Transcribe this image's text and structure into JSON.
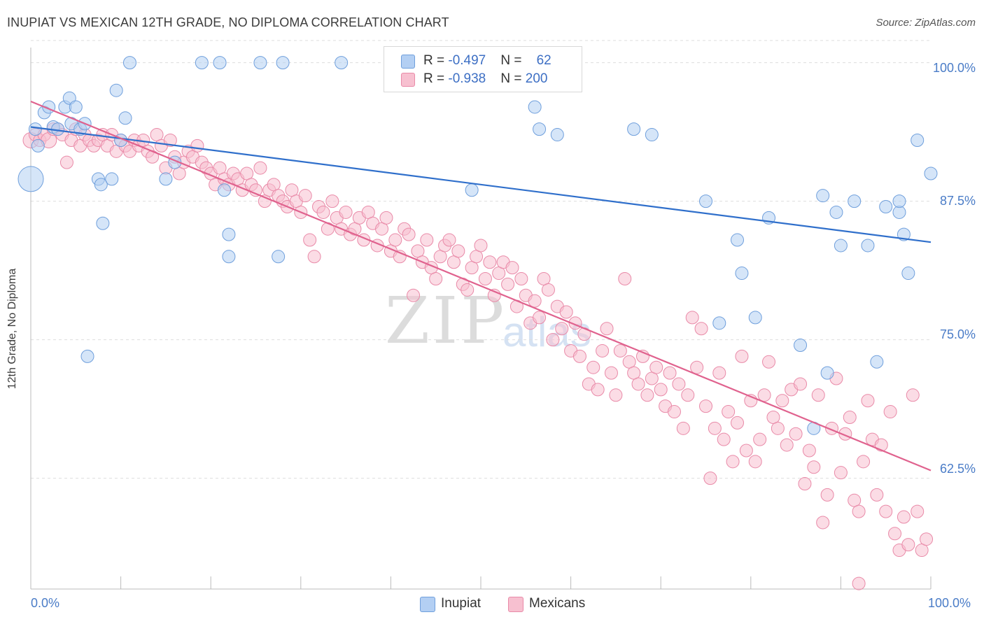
{
  "title": "INUPIAT VS MEXICAN 12TH GRADE, NO DIPLOMA CORRELATION CHART",
  "source": "Source: ZipAtlas.com",
  "watermark": {
    "zip": "ZIP",
    "atlas": "atlas"
  },
  "colors": {
    "inupiat_fill": "#b3cff3",
    "inupiat_stroke": "#6f9fdc",
    "inupiat_line": "#2f6fcb",
    "mexicans_fill": "#f7c0d0",
    "mexicans_stroke": "#e98aa8",
    "mexicans_line": "#e0628e",
    "tick_label": "#4a7cc7",
    "grid": "#dddddd"
  },
  "legend": {
    "rows": [
      {
        "r_label": "R = ",
        "r_value": "-0.497",
        "n_label": "N = ",
        "n_value": " 62"
      },
      {
        "r_label": "R = ",
        "r_value": "-0.938",
        "n_label": "N = ",
        "n_value": "200"
      }
    ]
  },
  "chart_data": {
    "type": "scatter",
    "title": "INUPIAT VS MEXICAN 12TH GRADE, NO DIPLOMA CORRELATION CHART",
    "xlabel": "",
    "ylabel": "12th Grade, No Diploma",
    "xlim": [
      0,
      100
    ],
    "ylim": [
      52.5,
      102.5
    ],
    "x_tick_labels": [
      "0.0%",
      "100.0%"
    ],
    "y_ticks": [
      62.5,
      75.0,
      87.5,
      100.0
    ],
    "y_tick_labels": [
      "62.5%",
      "75.0%",
      "87.5%",
      "100.0%"
    ],
    "grid": true,
    "legend_position": "top-center",
    "series": [
      {
        "name": "Inupiat",
        "points": [
          [
            0,
            89.5
          ],
          [
            0.5,
            94
          ],
          [
            0.8,
            92.5
          ],
          [
            1.5,
            95.5
          ],
          [
            2,
            96
          ],
          [
            2.5,
            94.2
          ],
          [
            3,
            94
          ],
          [
            3.8,
            96
          ],
          [
            4.3,
            96.8
          ],
          [
            4.5,
            94.5
          ],
          [
            5,
            96
          ],
          [
            5.5,
            94
          ],
          [
            6,
            94.5
          ],
          [
            6.3,
            73.5
          ],
          [
            7.5,
            89.5
          ],
          [
            7.8,
            89
          ],
          [
            8,
            85.5
          ],
          [
            9,
            89.5
          ],
          [
            9.5,
            97.5
          ],
          [
            10,
            93
          ],
          [
            10.5,
            95
          ],
          [
            11,
            100
          ],
          [
            15,
            89.5
          ],
          [
            16,
            91
          ],
          [
            19,
            100
          ],
          [
            21,
            100
          ],
          [
            21.5,
            88.5
          ],
          [
            22,
            84.5
          ],
          [
            22,
            82.5
          ],
          [
            25.5,
            100
          ],
          [
            27.5,
            82.5
          ],
          [
            28,
            100
          ],
          [
            34.5,
            100
          ],
          [
            46.5,
            100
          ],
          [
            49,
            88.5
          ],
          [
            56,
            96
          ],
          [
            56.5,
            94
          ],
          [
            58.5,
            93.5
          ],
          [
            67,
            94
          ],
          [
            69,
            93.5
          ],
          [
            75,
            87.5
          ],
          [
            76.5,
            76.5
          ],
          [
            78.5,
            84
          ],
          [
            79,
            81
          ],
          [
            80.5,
            77
          ],
          [
            82,
            86
          ],
          [
            85.5,
            74.5
          ],
          [
            87,
            67
          ],
          [
            88,
            88
          ],
          [
            88.5,
            72
          ],
          [
            89.5,
            86.5
          ],
          [
            90,
            83.5
          ],
          [
            91.5,
            87.5
          ],
          [
            93,
            83.5
          ],
          [
            94,
            73
          ],
          [
            95,
            87
          ],
          [
            96.5,
            86.5
          ],
          [
            96.5,
            87.5
          ],
          [
            97,
            84.5
          ],
          [
            97.5,
            81
          ],
          [
            98.5,
            93
          ],
          [
            100,
            90
          ]
        ],
        "trend": {
          "x": [
            0,
            100
          ],
          "y": [
            94.2,
            83.8
          ]
        }
      },
      {
        "name": "Mexicans",
        "points": [
          [
            0,
            93
          ],
          [
            0.5,
            93.5
          ],
          [
            1,
            93
          ],
          [
            1.5,
            93.5
          ],
          [
            2,
            93
          ],
          [
            2.5,
            94
          ],
          [
            3,
            94
          ],
          [
            3.5,
            93.5
          ],
          [
            4,
            91
          ],
          [
            4.5,
            93
          ],
          [
            5,
            94
          ],
          [
            5.5,
            92.5
          ],
          [
            6,
            93.5
          ],
          [
            6.5,
            93
          ],
          [
            7,
            92.5
          ],
          [
            7.5,
            93
          ],
          [
            8,
            93.5
          ],
          [
            8.5,
            92.5
          ],
          [
            9,
            93.5
          ],
          [
            9.5,
            92
          ],
          [
            10,
            93
          ],
          [
            10.5,
            92.5
          ],
          [
            11,
            92
          ],
          [
            11.5,
            93
          ],
          [
            12,
            92.5
          ],
          [
            12.5,
            93
          ],
          [
            13,
            92
          ],
          [
            13.5,
            91.5
          ],
          [
            14,
            93.5
          ],
          [
            14.5,
            92.5
          ],
          [
            15,
            90.5
          ],
          [
            15.5,
            93
          ],
          [
            16,
            91.5
          ],
          [
            16.5,
            90
          ],
          [
            17,
            91
          ],
          [
            17.5,
            92
          ],
          [
            18,
            91.5
          ],
          [
            18.5,
            92.5
          ],
          [
            19,
            91
          ],
          [
            19.5,
            90.5
          ],
          [
            20,
            90
          ],
          [
            20.5,
            89
          ],
          [
            21,
            90.5
          ],
          [
            21.5,
            89.5
          ],
          [
            22,
            89
          ],
          [
            22.5,
            90
          ],
          [
            23,
            89.5
          ],
          [
            23.5,
            88.5
          ],
          [
            24,
            90
          ],
          [
            24.5,
            89
          ],
          [
            25,
            88.5
          ],
          [
            25.5,
            90.5
          ],
          [
            26,
            87.5
          ],
          [
            26.5,
            88.5
          ],
          [
            27,
            89
          ],
          [
            27.5,
            88
          ],
          [
            28,
            87.5
          ],
          [
            28.5,
            87
          ],
          [
            29,
            88.5
          ],
          [
            29.5,
            87.5
          ],
          [
            30,
            86.5
          ],
          [
            30.5,
            88
          ],
          [
            31,
            84
          ],
          [
            31.5,
            82.5
          ],
          [
            32,
            87
          ],
          [
            32.5,
            86.5
          ],
          [
            33,
            85
          ],
          [
            33.5,
            87.5
          ],
          [
            34,
            86
          ],
          [
            34.5,
            85
          ],
          [
            35,
            86.5
          ],
          [
            35.5,
            84.5
          ],
          [
            36,
            85
          ],
          [
            36.5,
            86
          ],
          [
            37,
            84
          ],
          [
            37.5,
            86.5
          ],
          [
            38,
            85.5
          ],
          [
            38.5,
            83.5
          ],
          [
            39,
            85
          ],
          [
            39.5,
            86
          ],
          [
            40,
            83
          ],
          [
            40.5,
            84
          ],
          [
            41,
            82.5
          ],
          [
            41.5,
            85
          ],
          [
            42,
            84.5
          ],
          [
            42.5,
            79
          ],
          [
            43,
            83
          ],
          [
            43.5,
            82
          ],
          [
            44,
            84
          ],
          [
            44.5,
            81.5
          ],
          [
            45,
            80.5
          ],
          [
            45.5,
            82.5
          ],
          [
            46,
            83.5
          ],
          [
            46.5,
            84
          ],
          [
            47,
            82
          ],
          [
            47.5,
            83
          ],
          [
            48,
            80
          ],
          [
            48.5,
            79.5
          ],
          [
            49,
            81.5
          ],
          [
            49.5,
            82.5
          ],
          [
            50,
            83.5
          ],
          [
            50.5,
            80.5
          ],
          [
            51,
            82
          ],
          [
            51.5,
            79
          ],
          [
            52,
            81
          ],
          [
            52.5,
            82
          ],
          [
            53,
            80
          ],
          [
            53.5,
            81.5
          ],
          [
            54,
            78
          ],
          [
            54.5,
            80.5
          ],
          [
            55,
            79
          ],
          [
            55.5,
            76.5
          ],
          [
            56,
            78.5
          ],
          [
            56.5,
            77
          ],
          [
            57,
            80.5
          ],
          [
            57.5,
            79.5
          ],
          [
            58,
            75
          ],
          [
            58.5,
            78
          ],
          [
            59,
            76
          ],
          [
            59.5,
            77.5
          ],
          [
            60,
            74
          ],
          [
            60.5,
            76.5
          ],
          [
            61,
            73.5
          ],
          [
            61.5,
            75.5
          ],
          [
            62,
            71
          ],
          [
            62.5,
            72.5
          ],
          [
            63,
            70.5
          ],
          [
            63.5,
            74
          ],
          [
            64,
            76
          ],
          [
            64.5,
            72
          ],
          [
            65,
            70
          ],
          [
            65.5,
            74
          ],
          [
            66,
            80.5
          ],
          [
            66.5,
            73
          ],
          [
            67,
            72
          ],
          [
            67.5,
            71
          ],
          [
            68,
            73.5
          ],
          [
            68.5,
            70
          ],
          [
            69,
            71.5
          ],
          [
            69.5,
            72.5
          ],
          [
            70,
            70.5
          ],
          [
            70.5,
            69
          ],
          [
            71,
            72
          ],
          [
            71.5,
            68.5
          ],
          [
            72,
            71
          ],
          [
            72.5,
            67
          ],
          [
            73,
            70
          ],
          [
            73.5,
            77
          ],
          [
            74,
            72.5
          ],
          [
            74.5,
            76
          ],
          [
            75,
            69
          ],
          [
            75.5,
            62.5
          ],
          [
            76,
            67
          ],
          [
            76.5,
            72
          ],
          [
            77,
            66
          ],
          [
            77.5,
            68.5
          ],
          [
            78,
            64
          ],
          [
            78.5,
            67.5
          ],
          [
            79,
            73.5
          ],
          [
            79.5,
            65
          ],
          [
            80,
            69.5
          ],
          [
            80.5,
            64
          ],
          [
            81,
            66
          ],
          [
            81.5,
            70
          ],
          [
            82,
            73
          ],
          [
            82.5,
            68
          ],
          [
            83,
            67
          ],
          [
            83.5,
            69.5
          ],
          [
            84,
            65.5
          ],
          [
            84.5,
            70.5
          ],
          [
            85,
            66.5
          ],
          [
            85.5,
            71
          ],
          [
            86,
            62
          ],
          [
            86.5,
            65
          ],
          [
            87,
            63.5
          ],
          [
            87.5,
            70
          ],
          [
            88,
            58.5
          ],
          [
            88.5,
            61
          ],
          [
            89,
            67
          ],
          [
            89.5,
            71.5
          ],
          [
            90,
            63
          ],
          [
            90.5,
            66.5
          ],
          [
            91,
            68
          ],
          [
            91.5,
            60.5
          ],
          [
            92,
            59.5
          ],
          [
            92.5,
            64
          ],
          [
            93,
            69.5
          ],
          [
            93.5,
            66
          ],
          [
            94,
            61
          ],
          [
            94.5,
            65.5
          ],
          [
            95,
            59.5
          ],
          [
            95.5,
            68.5
          ],
          [
            96,
            57.5
          ],
          [
            96.5,
            56
          ],
          [
            97,
            59
          ],
          [
            97.5,
            56.5
          ],
          [
            98,
            70
          ],
          [
            98.5,
            59.5
          ],
          [
            99,
            56
          ],
          [
            99.5,
            57
          ],
          [
            92,
            53
          ]
        ],
        "trend": {
          "x": [
            0,
            100
          ],
          "y": [
            96.5,
            63.2
          ]
        }
      }
    ]
  }
}
